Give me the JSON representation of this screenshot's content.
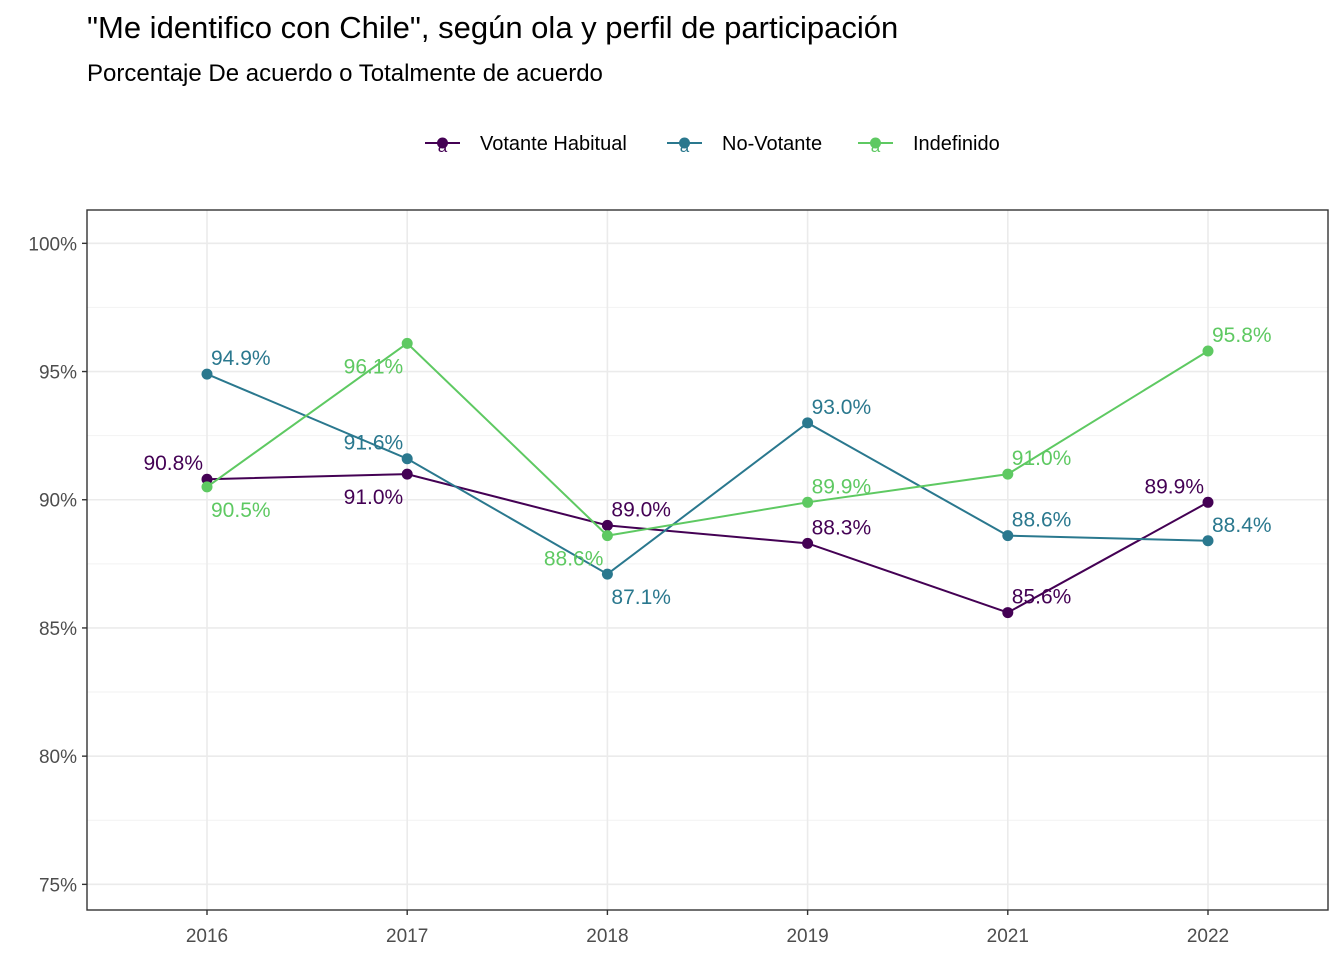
{
  "chart_data": {
    "type": "line",
    "title": "\"Me identifico con Chile\", según ola y perfil de participación",
    "subtitle": "Porcentaje De acuerdo o Totalmente de acuerdo",
    "xlabel": "",
    "ylabel": "",
    "x": [
      "2016",
      "2017",
      "2018",
      "2019",
      "2021",
      "2022"
    ],
    "ylim": [
      74,
      101.3
    ],
    "yticks": [
      "75%",
      "80%",
      "85%",
      "90%",
      "95%",
      "100%"
    ],
    "ytick_values": [
      75,
      80,
      85,
      90,
      95,
      100
    ],
    "grid": true,
    "legend_position": "top",
    "legend_key_glyph": "a",
    "series": [
      {
        "name": "Votante Habitual",
        "color": "#440154",
        "values": [
          90.8,
          91.0,
          89.0,
          88.3,
          85.6,
          89.9
        ],
        "labels": [
          "90.8%",
          "91.0%",
          "89.0%",
          "88.3%",
          "85.6%",
          "89.9%"
        ],
        "label_pos": [
          "upper-left",
          "lower-left",
          "upper-right",
          "upper-right",
          "upper-right",
          "upper-left"
        ]
      },
      {
        "name": "No-Votante",
        "color": "#2A788E",
        "values": [
          94.9,
          91.6,
          87.1,
          93.0,
          88.6,
          88.4
        ],
        "labels": [
          "94.9%",
          "91.6%",
          "87.1%",
          "93.0%",
          "88.6%",
          "88.4%"
        ],
        "label_pos": [
          "upper-right",
          "upper-left",
          "lower-right",
          "upper-right",
          "upper-right",
          "upper-right"
        ]
      },
      {
        "name": "Indefinido",
        "color": "#5EC962",
        "values": [
          90.5,
          96.1,
          88.6,
          89.9,
          91.0,
          95.8
        ],
        "labels": [
          "90.5%",
          "96.1%",
          "88.6%",
          "89.9%",
          "91.0%",
          "95.8%"
        ],
        "label_pos": [
          "lower-right",
          "lower-left",
          "lower-left",
          "upper-right",
          "upper-right",
          "upper-right"
        ]
      }
    ]
  }
}
